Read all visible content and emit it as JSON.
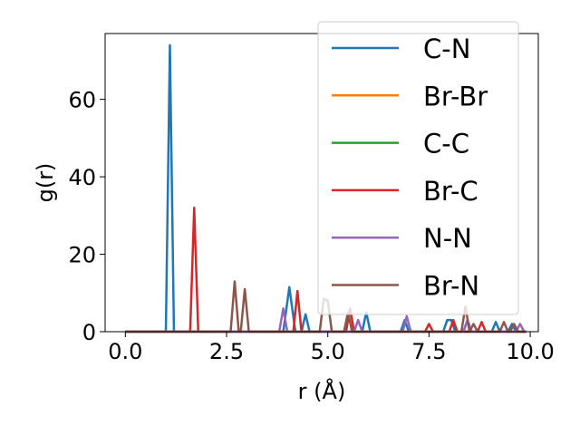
{
  "chart_data": {
    "type": "line",
    "xlabel": "r (Å)",
    "ylabel": "g(r)",
    "xlim": [
      -0.5,
      10.2
    ],
    "ylim": [
      0,
      77
    ],
    "xticks": [
      0.0,
      2.5,
      5.0,
      7.5,
      10.0
    ],
    "xtick_labels": [
      "0.0",
      "2.5",
      "5.0",
      "7.5",
      "10.0"
    ],
    "yticks": [
      0,
      20,
      40,
      60
    ],
    "ytick_labels": [
      "0",
      "20",
      "40",
      "60"
    ],
    "grid": false,
    "legend_position": "upper-right",
    "series": [
      {
        "name": "C-N",
        "color": "#1f77b4",
        "points": [
          [
            0,
            0
          ],
          [
            1.0,
            0
          ],
          [
            1.1,
            74
          ],
          [
            1.2,
            0
          ],
          [
            3.9,
            0
          ],
          [
            4.05,
            11.5
          ],
          [
            4.2,
            0
          ],
          [
            4.35,
            0
          ],
          [
            4.45,
            4.5
          ],
          [
            4.55,
            0
          ],
          [
            5.85,
            0
          ],
          [
            5.95,
            5
          ],
          [
            6.05,
            0
          ],
          [
            6.8,
            0
          ],
          [
            6.9,
            3
          ],
          [
            7.0,
            0
          ],
          [
            7.85,
            0
          ],
          [
            7.95,
            3
          ],
          [
            8.05,
            3
          ],
          [
            8.15,
            0
          ],
          [
            8.35,
            0
          ],
          [
            8.45,
            3
          ],
          [
            8.55,
            0
          ],
          [
            9.05,
            0
          ],
          [
            9.15,
            2.5
          ],
          [
            9.25,
            0
          ],
          [
            9.45,
            0
          ],
          [
            9.55,
            2
          ],
          [
            9.65,
            0
          ],
          [
            9.9,
            0
          ]
        ]
      },
      {
        "name": "Br-Br",
        "color": "#ff7f0e",
        "points": [
          [
            0,
            0
          ],
          [
            9.9,
            0
          ]
        ]
      },
      {
        "name": "C-C",
        "color": "#2ca02c",
        "points": [
          [
            0,
            0
          ],
          [
            9.9,
            0
          ]
        ]
      },
      {
        "name": "Br-C",
        "color": "#d62728",
        "points": [
          [
            0,
            0
          ],
          [
            1.6,
            0
          ],
          [
            1.7,
            32
          ],
          [
            1.8,
            0
          ],
          [
            4.15,
            0
          ],
          [
            4.25,
            10.5
          ],
          [
            4.35,
            0
          ],
          [
            5.45,
            0
          ],
          [
            5.55,
            6
          ],
          [
            5.65,
            0
          ],
          [
            7.4,
            0
          ],
          [
            7.5,
            2
          ],
          [
            7.6,
            0
          ],
          [
            8.0,
            0
          ],
          [
            8.1,
            3
          ],
          [
            8.2,
            0
          ],
          [
            8.7,
            0
          ],
          [
            8.8,
            2.5
          ],
          [
            8.9,
            0
          ],
          [
            9.9,
            0
          ]
        ]
      },
      {
        "name": "N-N",
        "color": "#9467bd",
        "points": [
          [
            0,
            0
          ],
          [
            3.8,
            0
          ],
          [
            3.9,
            6
          ],
          [
            4.0,
            0
          ],
          [
            5.65,
            0
          ],
          [
            5.75,
            3
          ],
          [
            5.85,
            0
          ],
          [
            6.85,
            0
          ],
          [
            6.95,
            4
          ],
          [
            7.05,
            0
          ],
          [
            8.35,
            0
          ],
          [
            8.45,
            3
          ],
          [
            8.55,
            0
          ],
          [
            9.65,
            0
          ],
          [
            9.75,
            2
          ],
          [
            9.85,
            0
          ],
          [
            9.9,
            0
          ]
        ]
      },
      {
        "name": "Br-N",
        "color": "#8c564b",
        "points": [
          [
            0,
            0
          ],
          [
            2.6,
            0
          ],
          [
            2.7,
            13
          ],
          [
            2.8,
            0
          ],
          [
            2.85,
            0
          ],
          [
            2.95,
            11
          ],
          [
            3.05,
            0
          ],
          [
            4.8,
            0
          ],
          [
            4.9,
            8.5
          ],
          [
            5.0,
            8
          ],
          [
            5.1,
            0
          ],
          [
            5.4,
            0
          ],
          [
            5.5,
            5
          ],
          [
            5.6,
            0
          ],
          [
            8.3,
            0
          ],
          [
            8.4,
            6.5
          ],
          [
            8.5,
            0
          ],
          [
            8.6,
            2
          ],
          [
            8.7,
            0
          ],
          [
            9.25,
            0
          ],
          [
            9.35,
            2.5
          ],
          [
            9.45,
            0
          ],
          [
            9.5,
            0
          ],
          [
            9.6,
            2
          ],
          [
            9.7,
            0
          ],
          [
            9.9,
            0
          ]
        ]
      }
    ]
  }
}
